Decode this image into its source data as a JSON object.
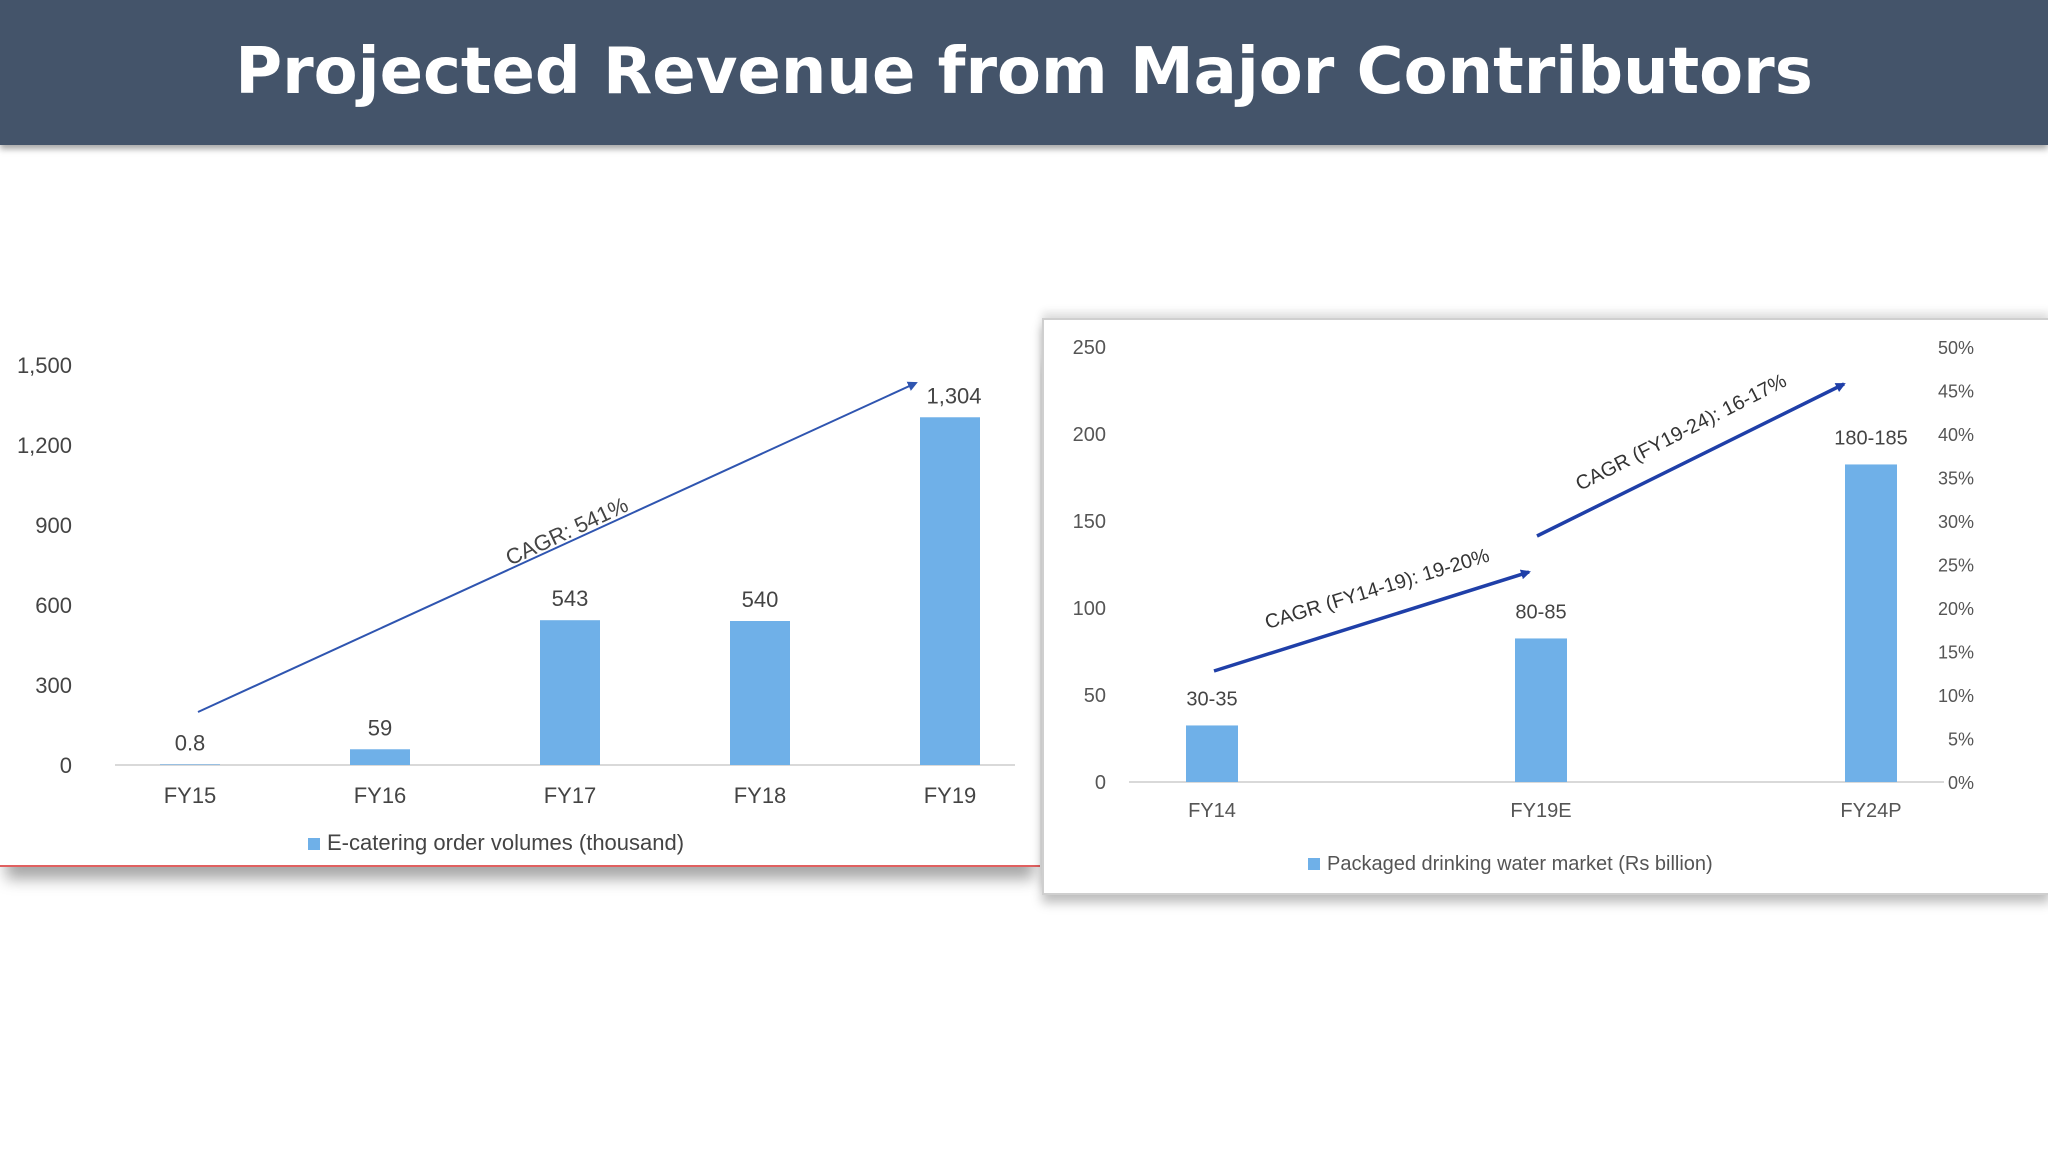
{
  "slide": {
    "title": "Projected Revenue from Major Contributors"
  },
  "chart_data": [
    {
      "type": "bar",
      "categories": [
        "FY15",
        "FY16",
        "FY17",
        "FY18",
        "FY19"
      ],
      "values": [
        0.8,
        59,
        543,
        540,
        1304
      ],
      "data_labels": [
        "0.8",
        "59",
        "543",
        "540",
        "1,304"
      ],
      "yticks": [
        "0",
        "300",
        "600",
        "900",
        "1,200",
        "1,500"
      ],
      "ylim": [
        0,
        1500
      ],
      "legend": "E-catering order volumes (thousand)",
      "legend_position": "bottom",
      "annotation": "CAGR: 541%",
      "bar_color": "#6fb0e8",
      "arrow_color": "#2f55b0",
      "grid": false
    },
    {
      "type": "bar",
      "categories": [
        "FY14",
        "FY19E",
        "FY24P"
      ],
      "values": [
        32.5,
        82.5,
        182.5
      ],
      "data_labels": [
        "30-35",
        "80-85",
        "180-185"
      ],
      "yticks": [
        "0",
        "50",
        "100",
        "150",
        "200",
        "250"
      ],
      "ylim": [
        0,
        250
      ],
      "y2ticks": [
        "0%",
        "5%",
        "10%",
        "15%",
        "20%",
        "25%",
        "30%",
        "35%",
        "40%",
        "45%",
        "50%"
      ],
      "y2lim": [
        0,
        50
      ],
      "legend": "Packaged drinking water market (Rs billion)",
      "legend_position": "bottom",
      "annotations": [
        "CAGR (FY14-19): 19-20%",
        "CAGR (FY19-24): 16-17%"
      ],
      "bar_color": "#6fb0e8",
      "arrow_color": "#1f3fa8",
      "grid": false
    }
  ]
}
